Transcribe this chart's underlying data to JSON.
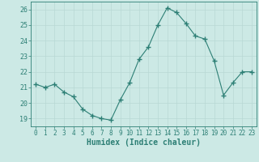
{
  "x": [
    0,
    1,
    2,
    3,
    4,
    5,
    6,
    7,
    8,
    9,
    10,
    11,
    12,
    13,
    14,
    15,
    16,
    17,
    18,
    19,
    20,
    21,
    22,
    23
  ],
  "y": [
    21.2,
    21.0,
    21.2,
    20.7,
    20.4,
    19.6,
    19.2,
    19.0,
    18.9,
    20.2,
    21.3,
    22.8,
    23.6,
    25.0,
    26.1,
    25.8,
    25.1,
    24.3,
    24.1,
    22.7,
    20.5,
    21.3,
    22.0,
    22.0
  ],
  "line_color": "#2d7f75",
  "marker": "+",
  "marker_size": 4,
  "bg_color": "#cce9e5",
  "grid_color": "#b8d8d4",
  "tick_color": "#2d7f75",
  "xlabel": "Humidex (Indice chaleur)",
  "ylim": [
    18.5,
    26.5
  ],
  "xlim": [
    -0.5,
    23.5
  ],
  "yticks": [
    19,
    20,
    21,
    22,
    23,
    24,
    25,
    26
  ],
  "xticks": [
    0,
    1,
    2,
    3,
    4,
    5,
    6,
    7,
    8,
    9,
    10,
    11,
    12,
    13,
    14,
    15,
    16,
    17,
    18,
    19,
    20,
    21,
    22,
    23
  ],
  "font_color": "#2d7f75",
  "axis_color": "#2d7f75",
  "linewidth": 0.8
}
